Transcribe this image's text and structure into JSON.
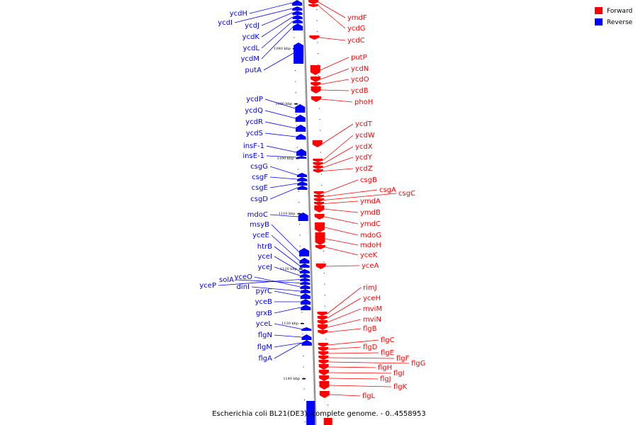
{
  "title": "Escherichia coli BL21(DE3), complete genome. - 0..4558953",
  "legend": [
    {
      "label": "Forward",
      "color": "#ff0000"
    },
    {
      "label": "Reverse",
      "color": "#0000ff"
    }
  ],
  "scale_labels": [
    "1080 kbp",
    "1090 kbp",
    "1100 kbp",
    "1110 kbp",
    "1120 kbp",
    "1130 kbp",
    "1140 kbp"
  ],
  "reverse_genes": [
    "ycdH",
    "ycdI",
    "ycdJ",
    "ycdK",
    "ycdL",
    "ycdM",
    "putA",
    "ycdP",
    "ycdQ",
    "ycdR",
    "ycdS",
    "insF-1",
    "insE-1",
    "csgG",
    "csgF",
    "csgE",
    "csgD",
    "mdoC",
    "msyB",
    "yceE",
    "htrB",
    "yceI",
    "yceJ",
    "yceP",
    "solA",
    "yceO",
    "dinI",
    "pyrC",
    "yceB",
    "grxB",
    "yceL",
    "flgN",
    "flgM",
    "flgA"
  ],
  "forward_genes": [
    "ymdF",
    "ycdG",
    "ycdC",
    "putP",
    "ycdN",
    "ycdO",
    "ycdB",
    "phoH",
    "ycdT",
    "ycdW",
    "ycdX",
    "ycdY",
    "ycdZ",
    "csgB",
    "csgA",
    "csgC",
    "ymdA",
    "ymdB",
    "ymdC",
    "mdoG",
    "mdoH",
    "yceK",
    "yceA",
    "rimJ",
    "yceH",
    "mviM",
    "mviN",
    "flgB",
    "flgC",
    "flgD",
    "flgE",
    "flgF",
    "flgG",
    "flgH",
    "flgI",
    "flgJ",
    "flgK",
    "flgL"
  ],
  "colors": {
    "forward": "#ff0000",
    "reverse": "#0000ff",
    "backbone": "#8c8c8c"
  }
}
